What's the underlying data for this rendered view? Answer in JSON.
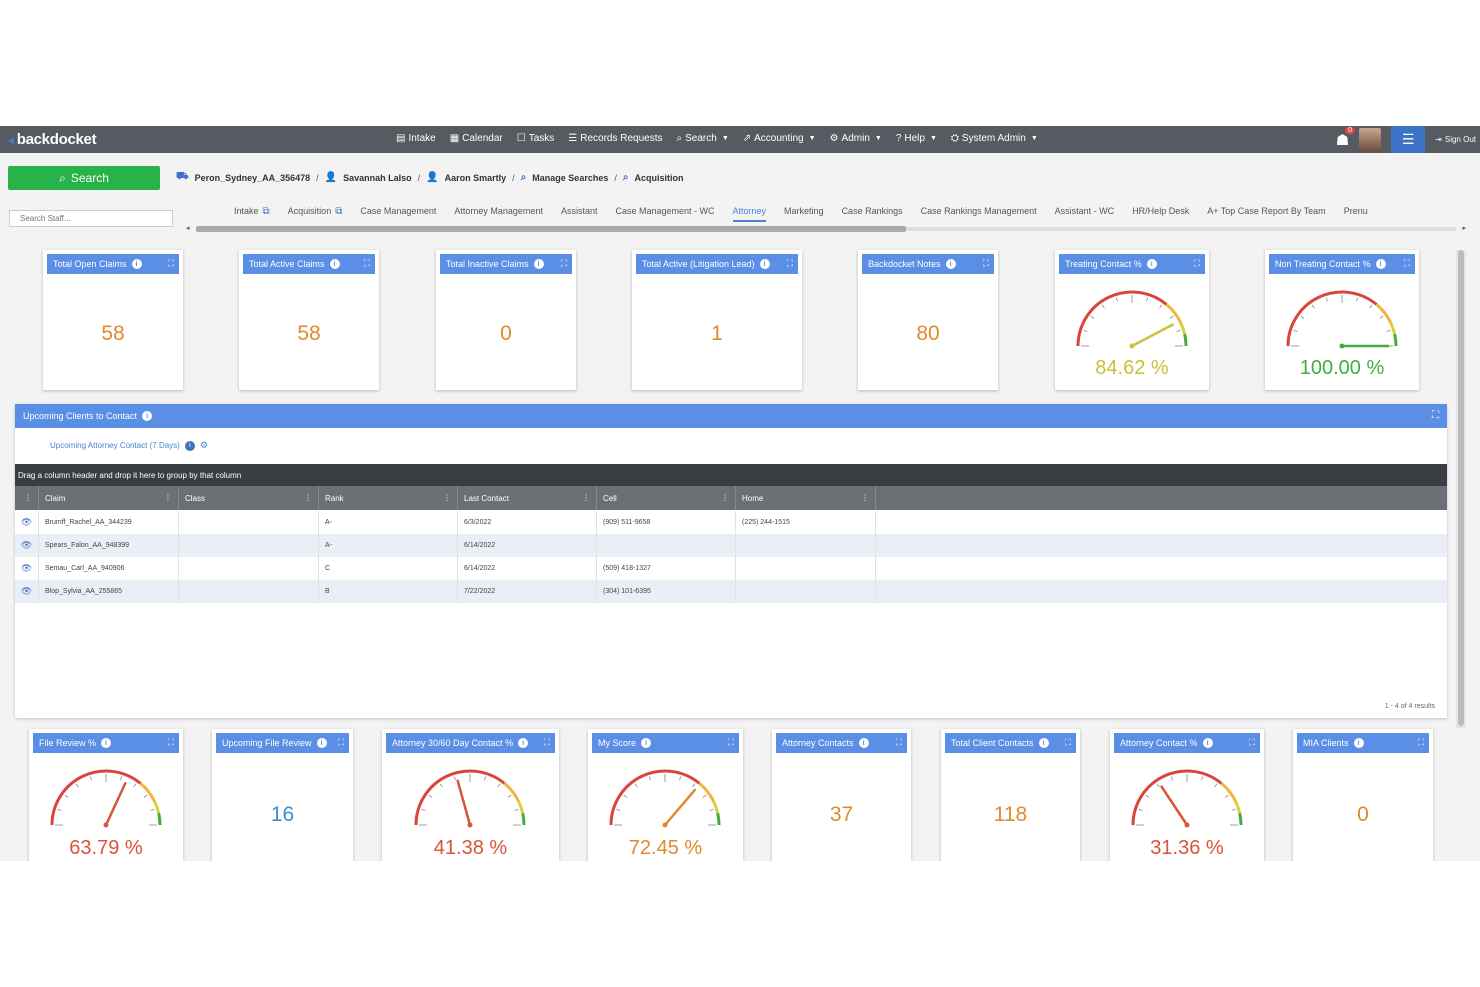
{
  "app": {
    "logo": "backdocket"
  },
  "nav": {
    "items": [
      {
        "icon": "▤",
        "label": "Intake",
        "caret": false
      },
      {
        "icon": "▦",
        "label": "Calendar",
        "caret": false
      },
      {
        "icon": "☐",
        "label": "Tasks",
        "caret": false
      },
      {
        "icon": "☰",
        "label": "Records Requests",
        "caret": false
      },
      {
        "icon": "⌕",
        "label": "Search",
        "caret": true
      },
      {
        "icon": "⇗",
        "label": "Accounting",
        "caret": true
      },
      {
        "icon": "⚙",
        "label": "Admin",
        "caret": true
      },
      {
        "icon": "?",
        "label": "Help",
        "caret": true
      },
      {
        "icon": "⛭",
        "label": "System Admin",
        "caret": true
      }
    ],
    "notification_count": "0",
    "sign_out": "Sign Out"
  },
  "search": {
    "button_label": "Search",
    "staff_placeholder": "Search Staff..."
  },
  "breadcrumb": [
    {
      "icon": "⛟",
      "label": "Peron_Sydney_AA_356478"
    },
    {
      "icon": "👤",
      "label": "Savannah Lalso"
    },
    {
      "icon": "👤",
      "label": "Aaron Smartly"
    },
    {
      "icon": "⌕",
      "label": "Manage Searches"
    },
    {
      "icon": "⌕",
      "label": "Acquisition"
    }
  ],
  "tabs": [
    {
      "label": "Intake",
      "ext": true
    },
    {
      "label": "Acquisition",
      "ext": true
    },
    {
      "label": "Case Management",
      "ext": false
    },
    {
      "label": "Attorney Management",
      "ext": false
    },
    {
      "label": "Assistant",
      "ext": false
    },
    {
      "label": "Case Management - WC",
      "ext": false
    },
    {
      "label": "Attorney",
      "ext": false,
      "active": true
    },
    {
      "label": "Marketing",
      "ext": false
    },
    {
      "label": "Case Rankings",
      "ext": false
    },
    {
      "label": "Case Rankings Management",
      "ext": false
    },
    {
      "label": "Assistant - WC",
      "ext": false
    },
    {
      "label": "HR/Help Desk",
      "ext": false
    },
    {
      "label": "A+ Top Case Report By Team",
      "ext": false
    },
    {
      "label": "Prenu",
      "ext": false
    }
  ],
  "top_widgets": [
    {
      "title": "Total Open Claims",
      "value": "58"
    },
    {
      "title": "Total Active Claims",
      "value": "58"
    },
    {
      "title": "Total Inactive Claims",
      "value": "0"
    },
    {
      "title": "Total Active (Litigation Lead)",
      "value": "1"
    },
    {
      "title": "Backdocket Notes",
      "value": "80"
    },
    {
      "title": "Treating Contact %",
      "gauge": 84.62,
      "label": "84.62 %",
      "color": "#c8c23a"
    },
    {
      "title": "Non Treating Contact %",
      "gauge": 100.0,
      "label": "100.00 %",
      "color": "#3fae3f"
    }
  ],
  "upcoming": {
    "title": "Upcoming Clients to Contact",
    "sublink": "Upcoming Attorney Contact (7 Days)",
    "group_hint": "Drag a column header and drop it here to group by that column",
    "columns": [
      "Claim",
      "Class",
      "Rank",
      "Last Contact",
      "Cell",
      "Home"
    ],
    "rows": [
      {
        "claim": "Brumff_Rachel_AA_344239",
        "class": "",
        "rank": "A-",
        "last": "6/3/2022",
        "cell": "(909) 511-9658",
        "home": "(225) 244-1515"
      },
      {
        "claim": "Spears_Falon_AA_948399",
        "class": "",
        "rank": "A-",
        "last": "6/14/2022",
        "cell": "",
        "home": ""
      },
      {
        "claim": "Semau_Carl_AA_940906",
        "class": "",
        "rank": "C",
        "last": "6/14/2022",
        "cell": "(509) 418-1327",
        "home": ""
      },
      {
        "claim": "Blop_Sylvia_AA_255865",
        "class": "",
        "rank": "B",
        "last": "7/22/2022",
        "cell": "(304) 101-6395",
        "home": ""
      }
    ],
    "pager": "1 - 4 of 4 results"
  },
  "bottom_widgets": [
    {
      "title": "File Review %",
      "gauge": 63.79,
      "label": "63.79 %",
      "color": "#d9543a"
    },
    {
      "title": "Upcoming File Review",
      "value": "16",
      "blue": true
    },
    {
      "title": "Attorney 30/60 Day Contact %",
      "gauge": 41.38,
      "label": "41.38 %",
      "color": "#d9543a"
    },
    {
      "title": "My Score",
      "gauge": 72.45,
      "label": "72.45 %",
      "color": "#e08a2c"
    },
    {
      "title": "Attorney Contacts",
      "value": "37"
    },
    {
      "title": "Total Client Contacts",
      "value": "118"
    },
    {
      "title": "Attorney Contact %",
      "gauge": 31.36,
      "label": "31.36 %",
      "color": "#d9543a"
    },
    {
      "title": "MIA Clients",
      "value": "0"
    }
  ],
  "colors": {
    "header_blue": "#5b8fe6",
    "search_green": "#28b34a",
    "topbar": "#565a61",
    "value_orange": "#e08a2c"
  }
}
